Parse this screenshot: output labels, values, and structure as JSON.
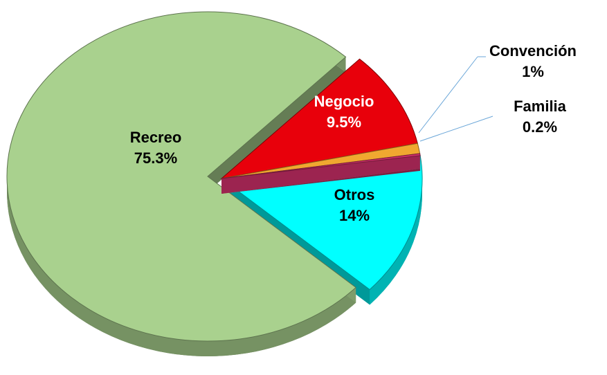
{
  "chart_data": {
    "type": "pie",
    "categories": [
      "Otros",
      "Recreo",
      "Negocio",
      "Convención",
      "Familia"
    ],
    "values": [
      14,
      75.3,
      9.5,
      1,
      0.2
    ],
    "value_labels": [
      "14%",
      "75.3%",
      "9.5%",
      "1%",
      "0.2%"
    ],
    "colors": [
      "#00ffff",
      "#a9d18e",
      "#e8000b",
      "#f0a830",
      "#d0306a"
    ]
  }
}
